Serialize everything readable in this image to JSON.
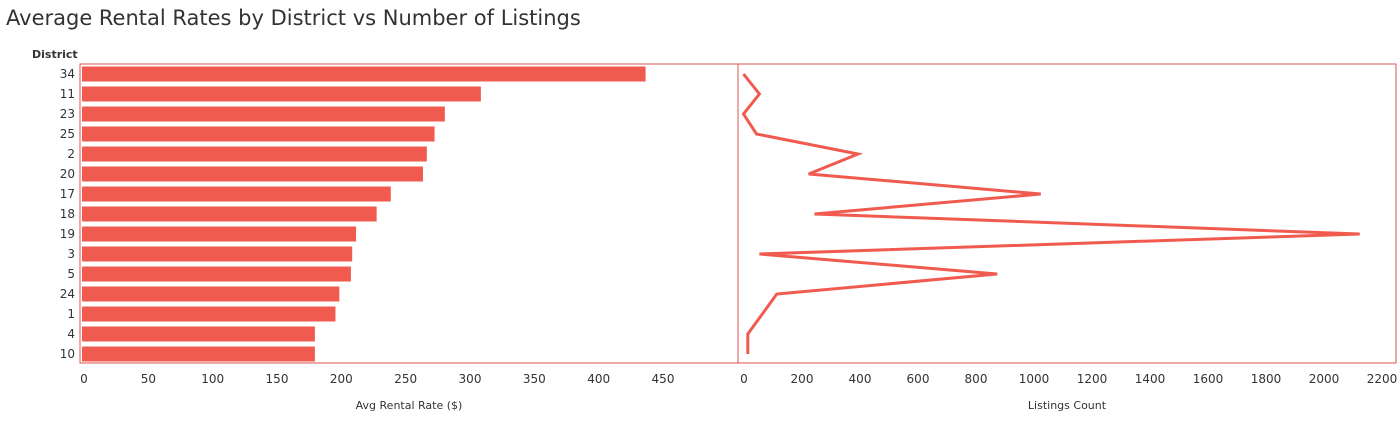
{
  "title": "Average Rental Rates by District vs Number of Listings",
  "colors": {
    "accent": "#f05a4f",
    "frame": "#d9534f",
    "text": "#333333",
    "gridline": "#e6e6e6"
  },
  "chart_data": [
    {
      "type": "bar",
      "orientation": "horizontal",
      "row_header": "District",
      "categories": [
        "34",
        "11",
        "23",
        "25",
        "2",
        "20",
        "17",
        "18",
        "19",
        "3",
        "5",
        "24",
        "1",
        "4",
        "10"
      ],
      "values": [
        438,
        310,
        282,
        274,
        268,
        265,
        240,
        229,
        213,
        210,
        209,
        200,
        197,
        181,
        181
      ],
      "xlabel": "Avg Rental Rate ($)",
      "xticks": [
        "0",
        "50",
        "100",
        "150",
        "200",
        "250",
        "300",
        "350",
        "400",
        "450"
      ],
      "xlim": [
        0,
        460
      ],
      "grid": false
    },
    {
      "type": "line",
      "orientation": "vertical",
      "categories": [
        "34",
        "11",
        "23",
        "25",
        "2",
        "20",
        "17",
        "18",
        "19",
        "3",
        "5",
        "24",
        "1",
        "4",
        "10"
      ],
      "values": [
        5,
        60,
        5,
        50,
        400,
        230,
        1030,
        250,
        2130,
        60,
        880,
        120,
        70,
        20,
        20
      ],
      "xlabel": "Listings Count",
      "xticks": [
        "0",
        "200",
        "400",
        "600",
        "800",
        "1000",
        "1200",
        "1400",
        "1600",
        "1800",
        "2000",
        "2200"
      ],
      "xlim": [
        0,
        2250
      ],
      "grid": false
    }
  ]
}
